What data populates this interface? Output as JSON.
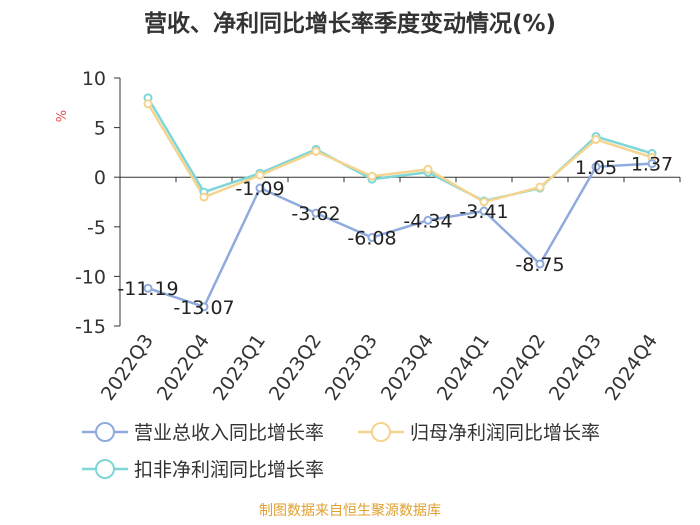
{
  "chart_data": {
    "type": "line",
    "title": "营收、净利同比增长率季度变动情况(%)",
    "ylabel": "%",
    "categories": [
      "2022Q3",
      "2022Q4",
      "2023Q1",
      "2023Q2",
      "2023Q3",
      "2023Q4",
      "2024Q1",
      "2024Q2",
      "2024Q3",
      "2024Q4"
    ],
    "ylim": [
      -15,
      10
    ],
    "yticks": [
      10,
      5,
      0,
      -5,
      -10,
      -15
    ],
    "series": [
      {
        "name": "营业总收入同比增长率",
        "color": "#8faadc",
        "values": [
          -11.19,
          -13.07,
          -1.09,
          -3.62,
          -6.08,
          -4.34,
          -3.41,
          -8.75,
          1.05,
          1.37
        ],
        "labels": [
          "-11.19",
          "-13.07",
          "-1.09",
          "-3.62",
          "-6.08",
          "-4.34",
          "-3.41",
          "-8.75",
          "1.05",
          "1.37"
        ]
      },
      {
        "name": "归母净利润同比增长率",
        "color": "#f5d48f",
        "values": [
          7.4,
          -2.0,
          0.2,
          2.6,
          0.1,
          0.8,
          -2.5,
          -1.0,
          3.8,
          2.0
        ]
      },
      {
        "name": "扣非净利润同比增长率",
        "color": "#7fd6d6",
        "values": [
          8.0,
          -1.5,
          0.4,
          2.8,
          -0.2,
          0.5,
          -2.4,
          -1.1,
          4.1,
          2.4
        ]
      }
    ],
    "grid": false,
    "legend_position": "bottom"
  },
  "footer": "制图数据来自恒生聚源数据库"
}
